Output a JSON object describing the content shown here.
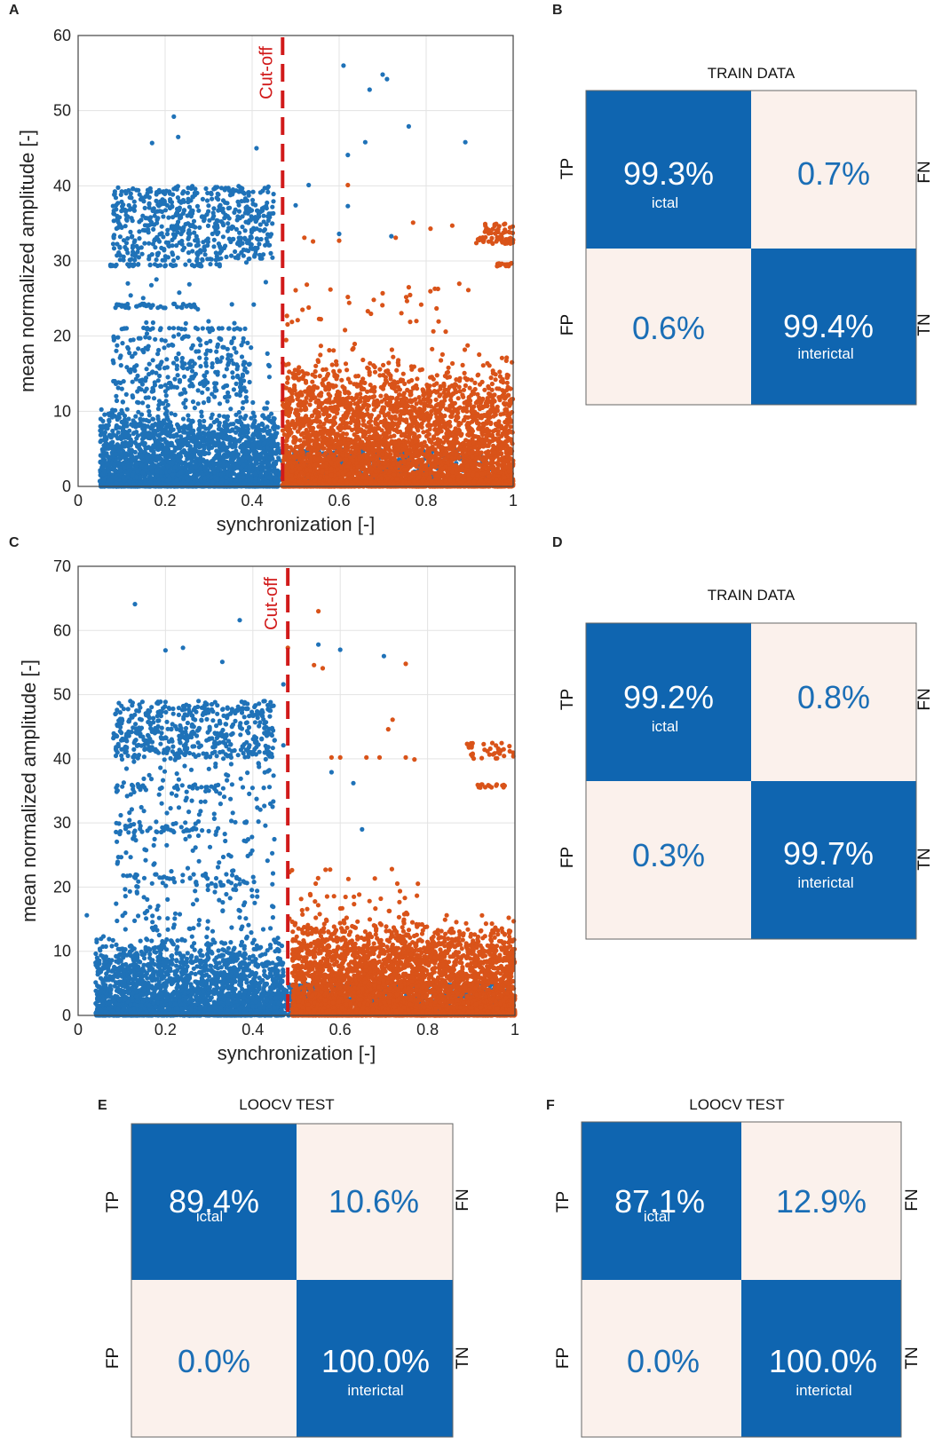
{
  "panels": {
    "A": "A",
    "B": "B",
    "C": "C",
    "D": "D",
    "E": "E",
    "F": "F"
  },
  "colors": {
    "ictal": "#1f72b8",
    "interictal": "#d95319",
    "cutoff": "#d11a1a",
    "cell_dark": "#0f65b0",
    "cell_light": "#fbf1ec",
    "pct_light_text": "#1a6eb6"
  },
  "chart_data": [
    {
      "id": "A",
      "type": "scatter",
      "title": "",
      "xlabel": "synchronization [-]",
      "ylabel": "mean normalized amplitude [-]",
      "xlim": [
        0,
        1
      ],
      "ylim": [
        0,
        60
      ],
      "xticks": [
        0,
        0.2,
        0.4,
        0.6,
        0.8,
        1
      ],
      "xtick_labels": [
        "0",
        "0.2",
        "0.4",
        "0.6",
        "0.8",
        "1"
      ],
      "yticks": [
        0,
        10,
        20,
        30,
        40,
        50,
        60
      ],
      "ytick_labels": [
        "0",
        "10",
        "20",
        "30",
        "40",
        "50",
        "60"
      ],
      "grid": true,
      "cutoff": {
        "x": 0.47,
        "label": "Cut-off"
      },
      "series": [
        {
          "name": "ictal",
          "color": "#1f72b8",
          "outliers": [
            [
              0.22,
              49.2
            ],
            [
              0.23,
              46.5
            ],
            [
              0.17,
              45.7
            ],
            [
              0.41,
              45
            ],
            [
              0.61,
              56
            ],
            [
              0.7,
              54.8
            ],
            [
              0.71,
              54.2
            ],
            [
              0.67,
              52.8
            ],
            [
              0.66,
              45.8
            ],
            [
              0.89,
              45.8
            ],
            [
              0.76,
              47.9
            ],
            [
              0.62,
              44.1
            ],
            [
              0.53,
              40.1
            ],
            [
              0.62,
              37.3
            ],
            [
              0.5,
              37.4
            ],
            [
              0.6,
              33.6
            ],
            [
              0.72,
              33.3
            ]
          ],
          "bands": [
            [
              30,
              40,
              0.08,
              0.45,
              600
            ],
            [
              29.3,
              29.6,
              0.07,
              0.34,
              40
            ],
            [
              23.7,
              24.3,
              0.08,
              0.27,
              40
            ],
            [
              20.8,
              21.1,
              0.1,
              0.4,
              30
            ],
            [
              0,
              11,
              0.05,
              0.46,
              2600
            ],
            [
              0,
              5,
              0.46,
              0.95,
              500
            ],
            [
              11,
              20,
              0.08,
              0.4,
              260
            ],
            [
              0,
              30,
              0.08,
              0.45,
              200
            ]
          ]
        },
        {
          "name": "interictal",
          "color": "#d95319",
          "outliers": [
            [
              0.62,
              40.1
            ],
            [
              0.77,
              35.1
            ],
            [
              0.81,
              34.3
            ],
            [
              0.86,
              34.7
            ],
            [
              0.73,
              33.1
            ],
            [
              0.52,
              33.1
            ],
            [
              0.54,
              32.6
            ],
            [
              0.6,
              32.7
            ],
            [
              0.58,
              26.2
            ],
            [
              0.62,
              25.2
            ],
            [
              0.7,
              25.7
            ],
            [
              0.76,
              26.5
            ],
            [
              0.82,
              26.3
            ],
            [
              0.5,
              26.1
            ],
            [
              0.53,
              23.8
            ]
          ],
          "bands": [
            [
              0,
              18,
              0.47,
              1.0,
              4200
            ],
            [
              32.3,
              33.2,
              0.91,
              1.0,
              40
            ],
            [
              33.5,
              35,
              0.93,
              1.0,
              30
            ],
            [
              29.3,
              29.7,
              0.96,
              1.0,
              20
            ],
            [
              18,
              27,
              0.47,
              0.9,
              40
            ]
          ]
        }
      ]
    },
    {
      "id": "C",
      "type": "scatter",
      "title": "",
      "xlabel": "synchronization [-]",
      "ylabel": "mean normalized amplitude [-]",
      "xlim": [
        0,
        1
      ],
      "ylim": [
        0,
        70
      ],
      "xticks": [
        0,
        0.2,
        0.4,
        0.6,
        0.8,
        1
      ],
      "xtick_labels": [
        "0",
        "0.2",
        "0.4",
        "0.6",
        "0.8",
        "1"
      ],
      "yticks": [
        0,
        10,
        20,
        30,
        40,
        50,
        60,
        70
      ],
      "ytick_labels": [
        "0",
        "10",
        "20",
        "30",
        "40",
        "50",
        "60",
        "70"
      ],
      "grid": true,
      "cutoff": {
        "x": 0.48,
        "label": "Cut-off"
      },
      "series": [
        {
          "name": "ictal",
          "color": "#1f72b8",
          "outliers": [
            [
              0.13,
              64.1
            ],
            [
              0.37,
              61.6
            ],
            [
              0.2,
              56.9
            ],
            [
              0.24,
              57.3
            ],
            [
              0.33,
              55.1
            ],
            [
              0.55,
              57.8
            ],
            [
              0.6,
              57.0
            ],
            [
              0.7,
              56.0
            ],
            [
              0.02,
              15.6
            ],
            [
              0.47,
              51.6
            ],
            [
              0.44,
              33.0
            ],
            [
              0.63,
              36.2
            ],
            [
              0.58,
              37.9
            ],
            [
              0.65,
              29.0
            ],
            [
              0.47,
              42.1
            ]
          ],
          "bands": [
            [
              40,
              49,
              0.08,
              0.45,
              500
            ],
            [
              35,
              36,
              0.08,
              0.33,
              30
            ],
            [
              28.5,
              30,
              0.08,
              0.27,
              40
            ],
            [
              20,
              22,
              0.09,
              0.4,
              40
            ],
            [
              0,
              13,
              0.04,
              0.47,
              2600
            ],
            [
              0,
              5,
              0.47,
              0.99,
              500
            ],
            [
              13,
              40,
              0.08,
              0.45,
              250
            ]
          ]
        },
        {
          "name": "interictal",
          "color": "#d95319",
          "outliers": [
            [
              0.55,
              63.0
            ],
            [
              0.54,
              54.6
            ],
            [
              0.56,
              54.1
            ],
            [
              0.75,
              54.8
            ],
            [
              0.72,
              46.1
            ],
            [
              0.71,
              44.6
            ],
            [
              0.48,
              57.3
            ],
            [
              0.58,
              40.2
            ],
            [
              0.6,
              40.2
            ],
            [
              0.66,
              40.2
            ],
            [
              0.69,
              40.2
            ],
            [
              0.75,
              40.2
            ],
            [
              0.77,
              39.9
            ]
          ],
          "bands": [
            [
              0,
              16,
              0.49,
              1.0,
              4200
            ],
            [
              40,
              42.5,
              0.89,
              1.0,
              40
            ],
            [
              35.5,
              36,
              0.91,
              0.98,
              15
            ],
            [
              15,
              23,
              0.48,
              0.8,
              40
            ]
          ]
        }
      ]
    }
  ],
  "matrices": [
    {
      "id": "B",
      "title": "TRAIN DATA",
      "tp": "TP",
      "fn": "FN",
      "fp": "FP",
      "tn": "TN",
      "tp_pct": "99.3%",
      "fn_pct": "0.7%",
      "fp_pct": "0.6%",
      "tn_pct": "99.4%",
      "ictal": "ictal",
      "interictal": "interictal"
    },
    {
      "id": "D",
      "title": "TRAIN DATA",
      "tp": "TP",
      "fn": "FN",
      "fp": "FP",
      "tn": "TN",
      "tp_pct": "99.2%",
      "fn_pct": "0.8%",
      "fp_pct": "0.3%",
      "tn_pct": "99.7%",
      "ictal": "ictal",
      "interictal": "interictal"
    },
    {
      "id": "E",
      "title": "LOOCV TEST",
      "tp": "TP",
      "fn": "FN",
      "fp": "FP",
      "tn": "TN",
      "tp_pct": "89.4%",
      "fn_pct": "10.6%",
      "fp_pct": "0.0%",
      "tn_pct": "100.0%",
      "ictal": "ictal",
      "interictal": "interictal"
    },
    {
      "id": "F",
      "title": "LOOCV TEST",
      "tp": "TP",
      "fn": "FN",
      "fp": "FP",
      "tn": "TN",
      "tp_pct": "87.1%",
      "fn_pct": "12.9%",
      "fp_pct": "0.0%",
      "tn_pct": "100.0%",
      "ictal": "ictal",
      "interictal": "interictal"
    }
  ]
}
